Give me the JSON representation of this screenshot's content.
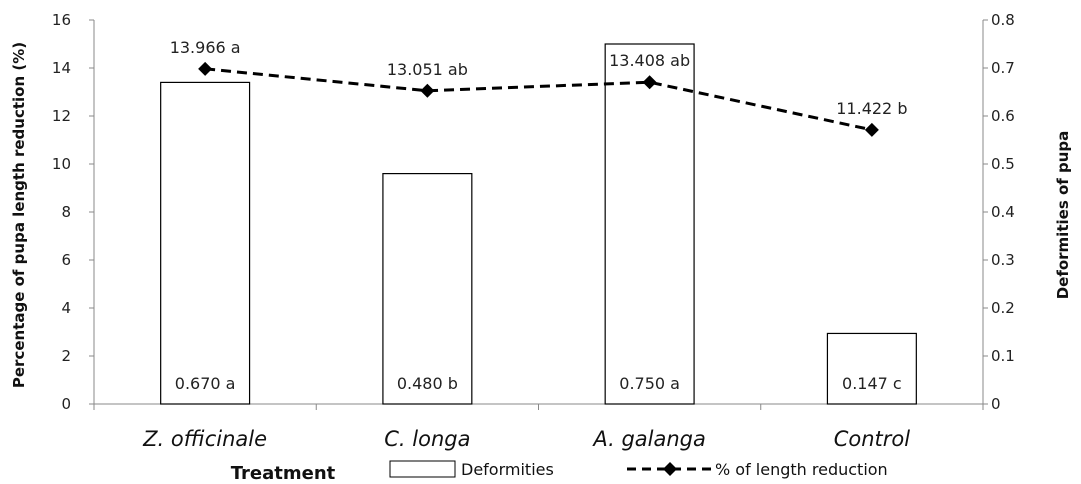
{
  "chart_data": {
    "type": "bar+line",
    "xlabel": "Treatment",
    "ylabel_left": "Percentage of pupa length reduction (%)",
    "ylabel_right": "Deformities of pupa",
    "categories": [
      "Z. officinale",
      "C. longa",
      "A. galanga",
      "Control"
    ],
    "ylim_left": [
      0,
      16
    ],
    "yticks_left": [
      "0",
      "2",
      "4",
      "6",
      "8",
      "10",
      "12",
      "14",
      "16"
    ],
    "ylim_right": [
      0,
      0.8
    ],
    "yticks_right": [
      "0",
      "0.1",
      "0.2",
      "0.3",
      "0.4",
      "0.5",
      "0.6",
      "0.7",
      "0.8"
    ],
    "grid": false,
    "legend_position": "bottom",
    "series": [
      {
        "name": "Deformities",
        "kind": "bar",
        "axis": "right",
        "values": [
          0.67,
          0.48,
          0.75,
          0.147
        ],
        "labels": [
          "0.670 a",
          "0.480 b",
          "0.750 a",
          "0.147 c"
        ]
      },
      {
        "name": "% of length reduction",
        "kind": "line",
        "axis": "left",
        "values": [
          13.966,
          13.051,
          13.408,
          11.422
        ],
        "labels": [
          "13.966 a",
          "13.051 ab",
          "13.408 ab",
          "11.422 b"
        ]
      }
    ],
    "colors": {
      "bar_fill": "#ffffff",
      "bar_stroke": "#000000",
      "line": "#000000"
    }
  }
}
